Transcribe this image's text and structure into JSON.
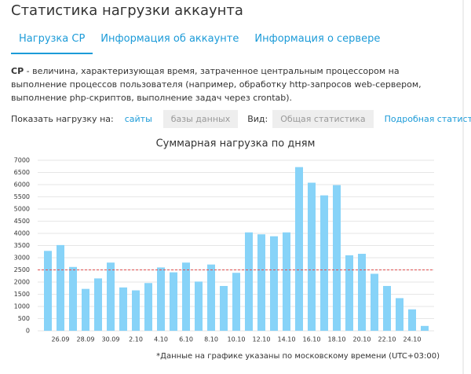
{
  "header": {
    "title": "Статистика нагрузки аккаунта"
  },
  "tabs": [
    {
      "label": "Нагрузка CP",
      "active": true
    },
    {
      "label": "Информация об аккаунте",
      "active": false
    },
    {
      "label": "Информация о сервере",
      "active": false
    }
  ],
  "description": {
    "term": "CP",
    "text": " - величина, характеризующая время, затраченное центральным процессором на выполнение процессов пользователя (например, обработку http-запросов web-сервером, выполнение php-скриптов, выполнение задач через crontab)."
  },
  "controls": {
    "load_label": "Показать нагрузку на:",
    "load_options": [
      "сайты",
      "базы данных"
    ],
    "view_label": "Вид:",
    "view_options": [
      "Общая статистика",
      "Подробная статистика"
    ]
  },
  "chart": {
    "type": "bar",
    "title": "Суммарная нагрузка по дням",
    "color": "#87d3f8",
    "categories": [
      null,
      "26.09",
      null,
      "28.09",
      null,
      "30.09",
      null,
      "2.10",
      null,
      "4.10",
      null,
      "6.10",
      null,
      "8.10",
      null,
      "10.10",
      null,
      "12.10",
      null,
      "14.10",
      null,
      "16.10",
      null,
      "18.10",
      null,
      "20.10",
      null,
      "22.10",
      null,
      "24.10",
      null
    ],
    "values": [
      3280,
      3520,
      2620,
      1720,
      2150,
      2800,
      1780,
      1660,
      1960,
      2600,
      2400,
      2800,
      2020,
      2720,
      1840,
      2380,
      4040,
      3960,
      3880,
      4040,
      6720,
      6080,
      5560,
      5980,
      3100,
      3160,
      2340,
      1840,
      1340,
      880,
      200
    ],
    "ylim": [
      0,
      7000
    ],
    "yticks": [
      0,
      500,
      1000,
      1500,
      2000,
      2500,
      3000,
      3500,
      4000,
      4500,
      5000,
      5500,
      6000,
      6500,
      7000
    ],
    "grid": true,
    "threshold": 2500,
    "threshold_color": "#e05050",
    "footnote": "*Данные на графике указаны по московскому времени (UTC+03:00)"
  }
}
